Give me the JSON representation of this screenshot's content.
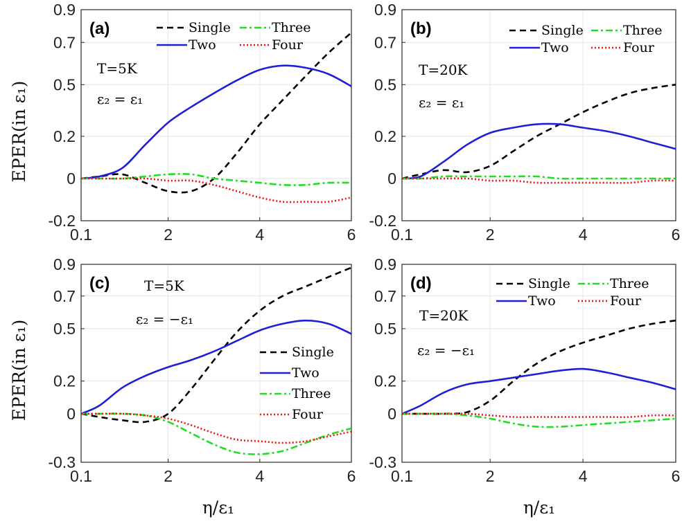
{
  "figure": {
    "ylabel": "EPER(in ε₁)",
    "xlabel": "η/ε₁",
    "colors": {
      "Single": "#000000",
      "Two": "#1f1fd6",
      "Three": "#22dd22",
      "Four": "#ee1111"
    },
    "dash": {
      "Single": "9,6",
      "Two": "",
      "Three": "10,4,3,4",
      "Four": "2,3"
    }
  },
  "chart_data": [
    {
      "type": "line",
      "panel": "(a)",
      "annotations": [
        "T=5K",
        "ε₂ = ε₁"
      ],
      "legend": [
        "Single",
        "Three",
        "Two",
        "Four"
      ],
      "legend_position": "top",
      "xlim": [
        0.1,
        6
      ],
      "ylim": [
        -0.2,
        0.9
      ],
      "xticks": [
        0.1,
        2,
        4,
        6
      ],
      "xtick_labels": [
        "0.1",
        "2",
        "4",
        "6"
      ],
      "yticks": [
        -0.2,
        0,
        0.2,
        0.5,
        0.7,
        0.9
      ],
      "ytick_labels": [
        "-0.2",
        "0",
        "0.2",
        "0.5",
        "0.7",
        "0.9"
      ],
      "x": [
        0.1,
        0.5,
        1.0,
        1.5,
        2.0,
        2.5,
        3.0,
        3.5,
        4.0,
        4.5,
        5.0,
        5.5,
        6.0
      ],
      "series": [
        {
          "name": "Single",
          "values": [
            0.0,
            0.01,
            0.02,
            -0.02,
            -0.06,
            -0.06,
            0.0,
            0.12,
            0.27,
            0.41,
            0.54,
            0.65,
            0.76
          ]
        },
        {
          "name": "Two",
          "values": [
            0.0,
            0.01,
            0.05,
            0.16,
            0.28,
            0.37,
            0.45,
            0.52,
            0.57,
            0.59,
            0.58,
            0.55,
            0.49
          ]
        },
        {
          "name": "Three",
          "values": [
            0.0,
            0.0,
            0.0,
            0.01,
            0.02,
            0.02,
            0.0,
            -0.01,
            -0.02,
            -0.03,
            -0.03,
            -0.02,
            -0.02
          ]
        },
        {
          "name": "Four",
          "values": [
            0.0,
            0.0,
            0.0,
            0.0,
            -0.01,
            -0.01,
            -0.03,
            -0.06,
            -0.09,
            -0.11,
            -0.11,
            -0.11,
            -0.09
          ]
        }
      ]
    },
    {
      "type": "line",
      "panel": "(b)",
      "annotations": [
        "T=20K",
        "ε₂ = ε₁"
      ],
      "legend": [
        "Single",
        "Three",
        "Two",
        "Four"
      ],
      "legend_position": "top",
      "xlim": [
        0.1,
        6
      ],
      "ylim": [
        -0.2,
        0.9
      ],
      "xticks": [
        0.1,
        2,
        4,
        6
      ],
      "xtick_labels": [
        "0.1",
        "2",
        "4",
        "6"
      ],
      "yticks": [
        -0.2,
        0,
        0.2,
        0.5,
        0.7,
        0.9
      ],
      "ytick_labels": [
        "-0.2",
        "0",
        "0.2",
        "0.5",
        "0.7",
        "0.9"
      ],
      "x": [
        0.1,
        0.5,
        1.0,
        1.5,
        2.0,
        2.5,
        3.0,
        3.5,
        4.0,
        4.5,
        5.0,
        5.5,
        6.0
      ],
      "series": [
        {
          "name": "Single",
          "values": [
            0.0,
            0.02,
            0.04,
            0.03,
            0.06,
            0.13,
            0.2,
            0.27,
            0.34,
            0.4,
            0.45,
            0.48,
            0.5
          ]
        },
        {
          "name": "Two",
          "values": [
            0.0,
            0.01,
            0.08,
            0.16,
            0.22,
            0.25,
            0.27,
            0.27,
            0.25,
            0.23,
            0.2,
            0.17,
            0.14
          ]
        },
        {
          "name": "Three",
          "values": [
            0.0,
            0.0,
            0.01,
            0.01,
            0.01,
            0.01,
            0.01,
            0.0,
            0.0,
            0.0,
            0.0,
            0.0,
            0.0
          ]
        },
        {
          "name": "Four",
          "values": [
            0.0,
            0.0,
            0.0,
            0.0,
            -0.01,
            -0.01,
            -0.02,
            -0.02,
            -0.02,
            -0.02,
            -0.02,
            -0.01,
            -0.01
          ]
        }
      ]
    },
    {
      "type": "line",
      "panel": "(c)",
      "annotations": [
        "T=5K",
        "ε₂ = −ε₁"
      ],
      "legend": [
        "Single",
        "Two",
        "Three",
        "Four"
      ],
      "legend_position": "right",
      "xlim": [
        0.1,
        6
      ],
      "ylim": [
        -0.3,
        0.9
      ],
      "xticks": [
        0.1,
        2,
        4,
        6
      ],
      "xtick_labels": [
        "0.1",
        "2",
        "4",
        "6"
      ],
      "yticks": [
        -0.3,
        0,
        0.2,
        0.5,
        0.7,
        0.9
      ],
      "ytick_labels": [
        "-0.3",
        "0",
        "0.2",
        "0.5",
        "0.7",
        "0.9"
      ],
      "x": [
        0.1,
        0.5,
        1.0,
        1.5,
        2.0,
        2.5,
        3.0,
        3.5,
        4.0,
        4.5,
        5.0,
        5.5,
        6.0
      ],
      "series": [
        {
          "name": "Single",
          "values": [
            0.0,
            -0.02,
            -0.04,
            -0.05,
            0.0,
            0.15,
            0.32,
            0.48,
            0.61,
            0.7,
            0.76,
            0.82,
            0.88
          ]
        },
        {
          "name": "Two",
          "values": [
            0.0,
            0.05,
            0.16,
            0.23,
            0.28,
            0.32,
            0.37,
            0.43,
            0.49,
            0.53,
            0.55,
            0.53,
            0.47
          ]
        },
        {
          "name": "Three",
          "values": [
            0.0,
            0.0,
            0.0,
            -0.01,
            -0.05,
            -0.12,
            -0.19,
            -0.24,
            -0.25,
            -0.23,
            -0.18,
            -0.13,
            -0.09
          ]
        },
        {
          "name": "Four",
          "values": [
            0.0,
            0.0,
            0.0,
            -0.01,
            -0.03,
            -0.07,
            -0.12,
            -0.16,
            -0.17,
            -0.18,
            -0.17,
            -0.14,
            -0.11
          ]
        }
      ]
    },
    {
      "type": "line",
      "panel": "(d)",
      "annotations": [
        "T=20K",
        "ε₂ = −ε₁"
      ],
      "legend": [
        "Single",
        "Three",
        "Two",
        "Four"
      ],
      "legend_position": "top",
      "xlim": [
        0.1,
        6
      ],
      "ylim": [
        -0.3,
        0.9
      ],
      "xticks": [
        0.1,
        2,
        4,
        6
      ],
      "xtick_labels": [
        "0.1",
        "2",
        "4",
        "6"
      ],
      "yticks": [
        -0.3,
        0,
        0.2,
        0.5,
        0.7,
        0.9
      ],
      "ytick_labels": [
        "-0.3",
        "0",
        "0.2",
        "0.5",
        "0.7",
        "0.9"
      ],
      "x": [
        0.1,
        0.5,
        1.0,
        1.5,
        2.0,
        2.5,
        3.0,
        3.5,
        4.0,
        4.5,
        5.0,
        5.5,
        6.0
      ],
      "series": [
        {
          "name": "Single",
          "values": [
            0.0,
            0.0,
            0.0,
            0.01,
            0.08,
            0.2,
            0.3,
            0.37,
            0.42,
            0.46,
            0.5,
            0.53,
            0.55
          ]
        },
        {
          "name": "Two",
          "values": [
            0.0,
            0.05,
            0.13,
            0.18,
            0.2,
            0.22,
            0.24,
            0.26,
            0.27,
            0.25,
            0.22,
            0.19,
            0.15
          ]
        },
        {
          "name": "Three",
          "values": [
            0.0,
            0.0,
            0.0,
            -0.01,
            -0.03,
            -0.06,
            -0.08,
            -0.08,
            -0.07,
            -0.06,
            -0.05,
            -0.04,
            -0.03
          ]
        },
        {
          "name": "Four",
          "values": [
            0.0,
            0.0,
            0.0,
            0.0,
            -0.01,
            -0.02,
            -0.02,
            -0.02,
            -0.02,
            -0.02,
            -0.02,
            -0.01,
            -0.01
          ]
        }
      ]
    }
  ]
}
